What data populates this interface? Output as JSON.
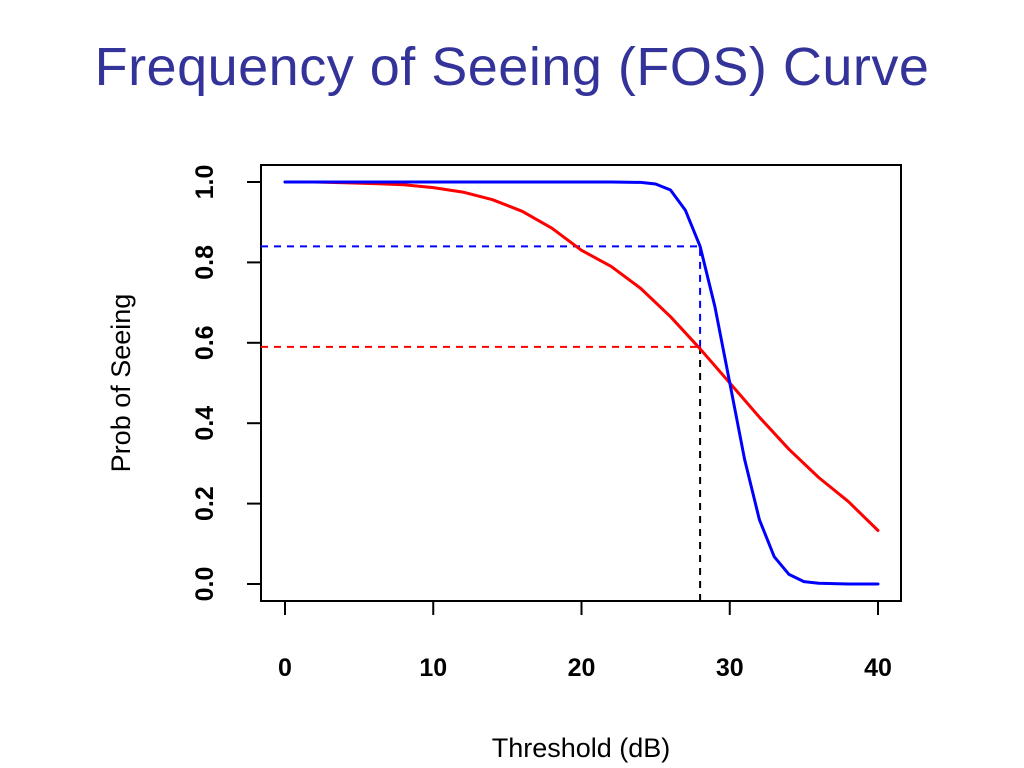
{
  "page": {
    "title": "Frequency of Seeing (FOS) Curve"
  },
  "chart_data": {
    "type": "line",
    "title": "",
    "xlabel": "Threshold (dB)",
    "ylabel": "Prob of Seeing",
    "xlim": [
      0,
      40
    ],
    "ylim": [
      0,
      1
    ],
    "xticks": [
      0,
      10,
      20,
      30,
      40
    ],
    "yticks": [
      0.0,
      0.2,
      0.4,
      0.6,
      0.8,
      1.0
    ],
    "x_tick_labels": [
      "0",
      "10",
      "20",
      "30",
      "40"
    ],
    "y_tick_labels": [
      "0.0",
      "0.2",
      "0.4",
      "0.6",
      "0.8",
      "1.0"
    ],
    "grid": false,
    "legend": "none",
    "series": [
      {
        "color": "#ff0000",
        "style": "solid",
        "x": [
          0,
          2,
          4,
          6,
          8,
          10,
          12,
          14,
          16,
          18,
          20,
          22,
          24,
          26,
          28,
          30,
          32,
          34,
          36,
          38,
          40
        ],
        "y": [
          1.0,
          1.0,
          0.998,
          0.996,
          0.993,
          0.986,
          0.975,
          0.956,
          0.927,
          0.885,
          0.83,
          0.79,
          0.735,
          0.665,
          0.585,
          0.5,
          0.415,
          0.335,
          0.265,
          0.205,
          0.133
        ]
      },
      {
        "color": "#0000ff",
        "style": "solid",
        "x": [
          0,
          4,
          8,
          12,
          16,
          20,
          22,
          24,
          25,
          26,
          27,
          28,
          29,
          30,
          31,
          32,
          33,
          34,
          35,
          36,
          38,
          40
        ],
        "y": [
          1.0,
          1.0,
          1.0,
          1.0,
          1.0,
          1.0,
          1.0,
          0.999,
          0.995,
          0.98,
          0.93,
          0.84,
          0.69,
          0.5,
          0.31,
          0.16,
          0.068,
          0.024,
          0.006,
          0.002,
          0.0,
          0.0
        ]
      }
    ],
    "reference_lines": [
      {
        "color": "#0000ff",
        "style": "dashed",
        "orientation": "horizontal",
        "y": 0.84,
        "x_from": 0,
        "x_to": 28
      },
      {
        "color": "#ff0000",
        "style": "dashed",
        "orientation": "horizontal",
        "y": 0.59,
        "x_from": 0,
        "x_to": 28
      },
      {
        "color": "#0000ff",
        "style": "dashed",
        "orientation": "vertical",
        "x": 28,
        "y_from": 0.59,
        "y_to": 0.84
      },
      {
        "color": "#000000",
        "style": "dashed",
        "orientation": "vertical",
        "x": 28,
        "y_from": 0.0,
        "y_to": 0.59
      }
    ]
  }
}
